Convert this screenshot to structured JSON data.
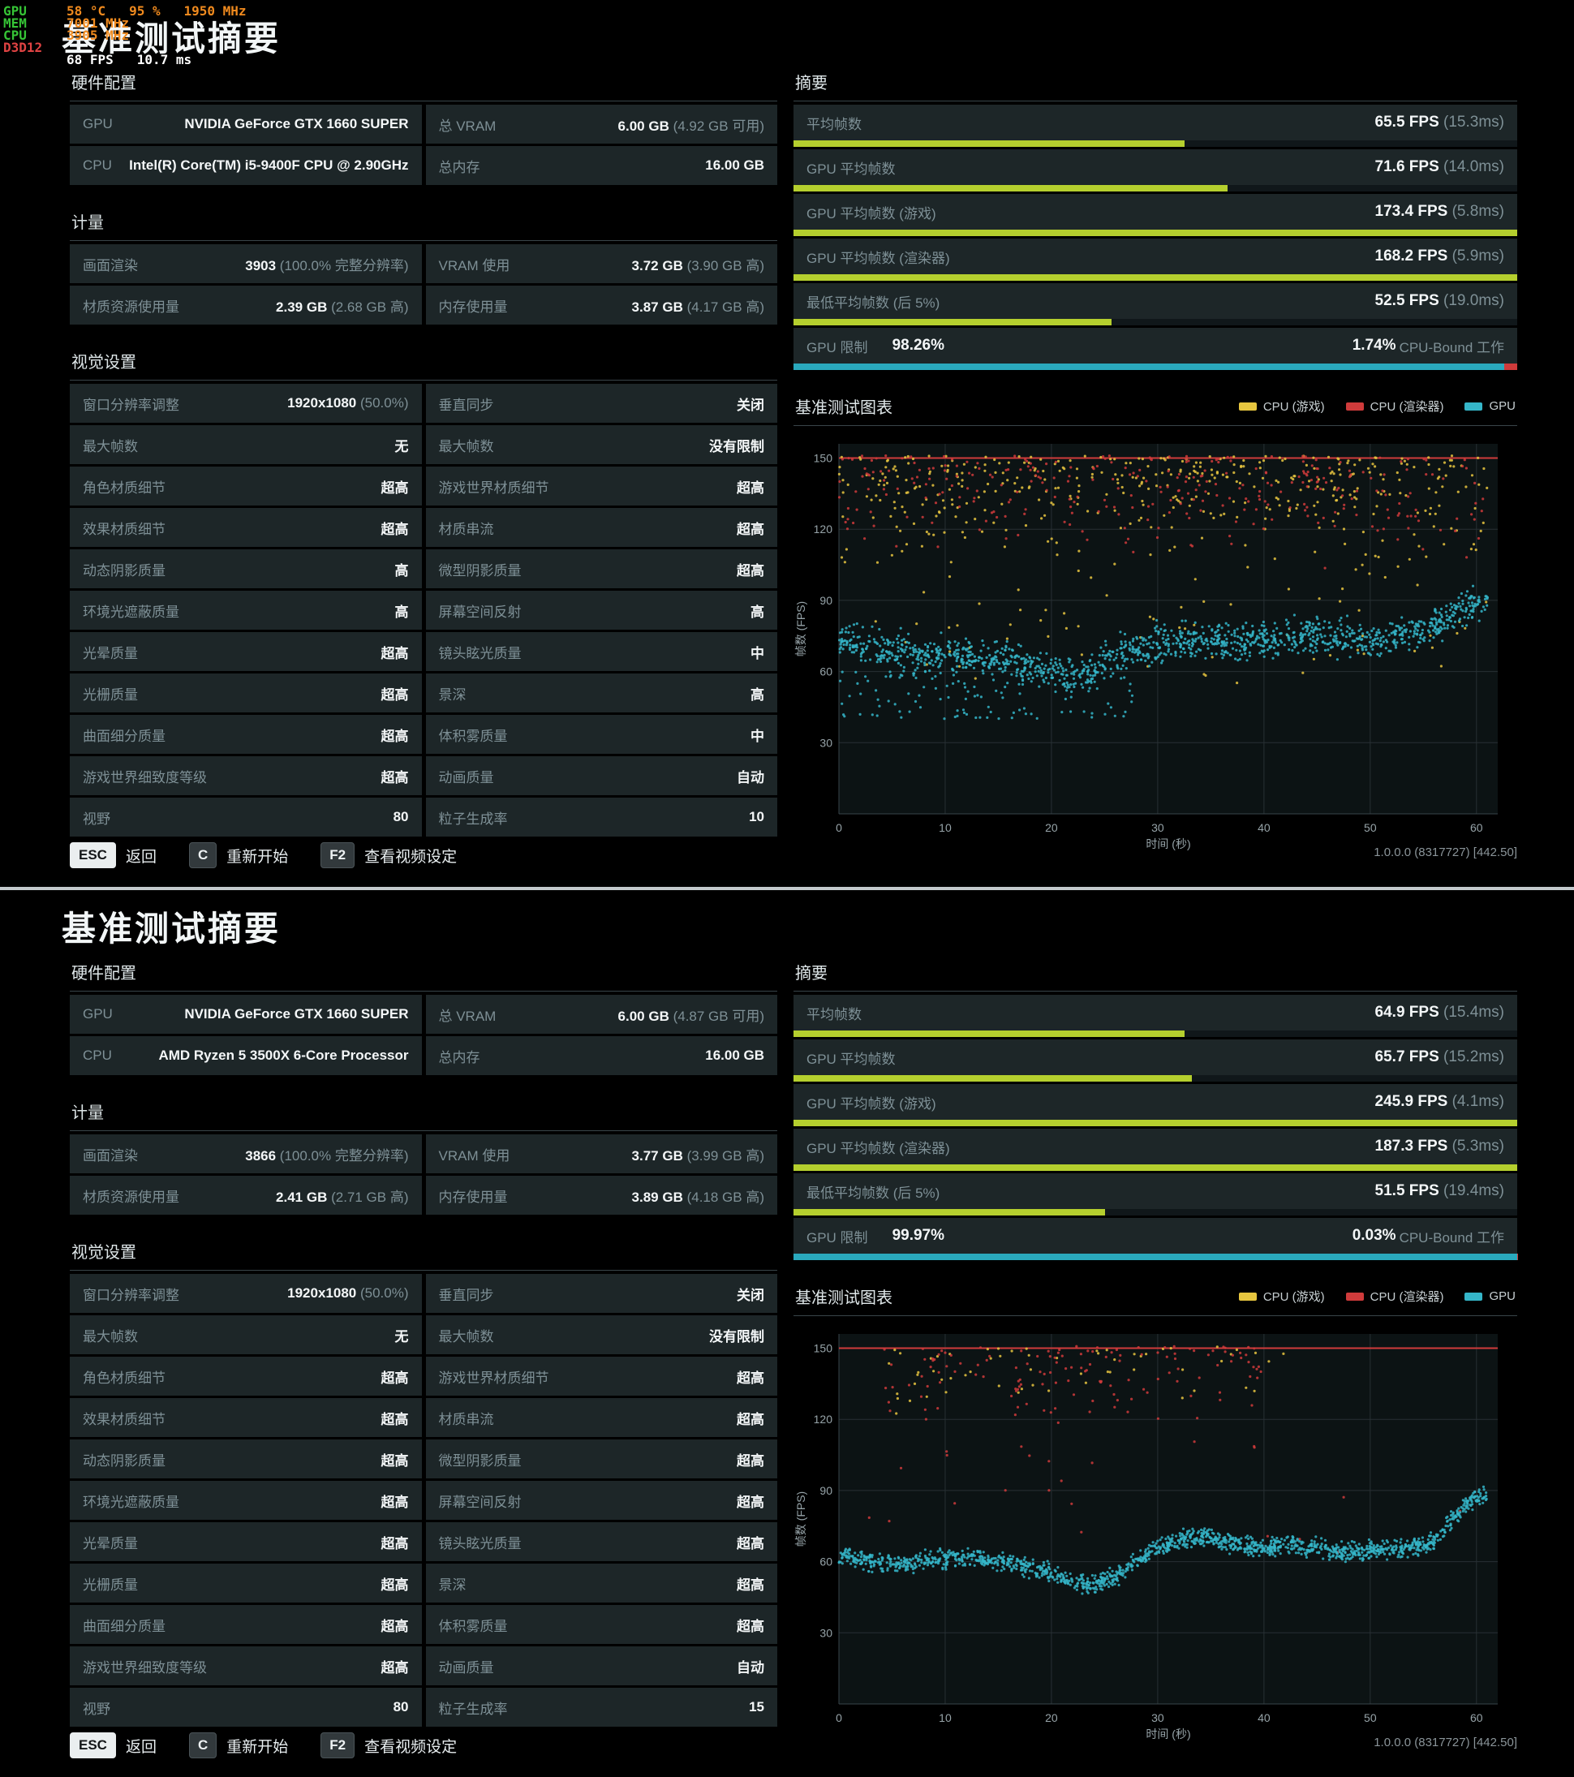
{
  "colors": {
    "green": "#b5cf2e",
    "teal": "#2aa9bd",
    "red": "#cf3b3b",
    "yellow": "#e7c63f",
    "gpu_scatter": "#35b6c9"
  },
  "overlay": {
    "lines": [
      {
        "label": "GPU",
        "label_color": "#36c436",
        "value": "58 °C   95 %   1950 MHz",
        "value_color": "#f08a1e"
      },
      {
        "label": "MEM",
        "label_color": "#36c436",
        "value": "7001 MHz",
        "value_color": "#f08a1e"
      },
      {
        "label": "CPU",
        "label_color": "#36c436",
        "value": "3905 MHz",
        "value_color": "#f08a1e"
      },
      {
        "label": "D3D12",
        "label_color": "#e04343",
        "value": "",
        "value_color": "#f08a1e"
      },
      {
        "label": "",
        "label_color": "#36c436",
        "value": "68 FPS   10.7 ms",
        "value_color": "#ffffff"
      }
    ]
  },
  "panels": [
    {
      "title": "基准测试摘要",
      "hardware": {
        "header": "硬件配置",
        "rows": [
          [
            {
              "label": "GPU",
              "value": "NVIDIA GeForce GTX 1660 SUPER"
            },
            {
              "label": "总 VRAM",
              "value": "6.00 GB",
              "note": "(4.92 GB 可用)"
            }
          ],
          [
            {
              "label": "CPU",
              "value": "Intel(R) Core(TM) i5-9400F CPU @ 2.90GHz"
            },
            {
              "label": "总内存",
              "value": "16.00 GB"
            }
          ]
        ]
      },
      "metrics": {
        "header": "计量",
        "rows": [
          [
            {
              "label": "画面渲染",
              "value": "3903",
              "note": "(100.0% 完整分辨率)"
            },
            {
              "label": "VRAM 使用",
              "value": "3.72 GB",
              "note": "(3.90 GB 高)"
            }
          ],
          [
            {
              "label": "材质资源使用量",
              "value": "2.39 GB",
              "note": "(2.68 GB 高)"
            },
            {
              "label": "内存使用量",
              "value": "3.87 GB",
              "note": "(4.17 GB 高)"
            }
          ]
        ]
      },
      "visual_settings": {
        "header": "视觉设置",
        "rows": [
          [
            {
              "label": "窗口分辨率调整",
              "value": "1920x1080",
              "note": "(50.0%)"
            },
            {
              "label": "垂直同步",
              "value": "关闭"
            }
          ],
          [
            {
              "label": "最大帧数",
              "value": "无"
            },
            {
              "label": "最大帧数",
              "value": "没有限制"
            }
          ],
          [
            {
              "label": "角色材质细节",
              "value": "超高"
            },
            {
              "label": "游戏世界材质细节",
              "value": "超高"
            }
          ],
          [
            {
              "label": "效果材质细节",
              "value": "超高"
            },
            {
              "label": "材质串流",
              "value": "超高"
            }
          ],
          [
            {
              "label": "动态阴影质量",
              "value": "高"
            },
            {
              "label": "微型阴影质量",
              "value": "超高"
            }
          ],
          [
            {
              "label": "环境光遮蔽质量",
              "value": "高"
            },
            {
              "label": "屏幕空间反射",
              "value": "高"
            }
          ],
          [
            {
              "label": "光晕质量",
              "value": "超高"
            },
            {
              "label": "镜头眩光质量",
              "value": "中"
            }
          ],
          [
            {
              "label": "光栅质量",
              "value": "超高"
            },
            {
              "label": "景深",
              "value": "高"
            }
          ],
          [
            {
              "label": "曲面细分质量",
              "value": "超高"
            },
            {
              "label": "体积雾质量",
              "value": "中"
            }
          ],
          [
            {
              "label": "游戏世界细致度等级",
              "value": "超高"
            },
            {
              "label": "动画质量",
              "value": "自动"
            }
          ],
          [
            {
              "label": "视野",
              "value": "80"
            },
            {
              "label": "粒子生成率",
              "value": "10"
            }
          ]
        ]
      },
      "summary": {
        "header": "摘要",
        "metrics": [
          {
            "label": "平均帧数",
            "value": "65.5 FPS",
            "note": "(15.3ms)",
            "bar_pct": 54
          },
          {
            "label": "GPU 平均帧数",
            "value": "71.6 FPS",
            "note": "(14.0ms)",
            "bar_pct": 60
          },
          {
            "label": "GPU 平均帧数 (游戏)",
            "value": "173.4 FPS",
            "note": "(5.8ms)",
            "bar_pct": 100
          },
          {
            "label": "GPU 平均帧数 (渲染器)",
            "value": "168.2 FPS",
            "note": "(5.9ms)",
            "bar_pct": 100
          },
          {
            "label": "最低平均帧数 (后 5%)",
            "value": "52.5 FPS",
            "note": "(19.0ms)",
            "bar_pct": 44
          }
        ],
        "gpu_limit": {
          "label": "GPU 限制",
          "value": "98.26%",
          "right_value": "1.74%",
          "right_label": "CPU-Bound 工作",
          "teal_pct": 98.26
        }
      },
      "chart": {
        "type": "scatter",
        "header": "基准测试图表",
        "legend": [
          {
            "label": "CPU (游戏)",
            "color": "#e7c63f"
          },
          {
            "label": "CPU (渲染器)",
            "color": "#cf3b3b"
          },
          {
            "label": "GPU",
            "color": "#35b6c9"
          }
        ],
        "xlabel": "时间 (秒)",
        "ylabel": "帧数 (FPS)",
        "xticks": [
          0,
          10,
          20,
          30,
          40,
          50,
          60
        ],
        "yticks": [
          30,
          60,
          90,
          120,
          150
        ],
        "xlim": [
          0,
          62
        ],
        "ylim": [
          0,
          156
        ],
        "cap": 150,
        "seed": 7,
        "series": [
          {
            "name": "CPU (游戏)",
            "color": "#e7c63f",
            "kind": "cloud",
            "count": 430,
            "t": [
              0,
              61
            ],
            "y": [
              96,
              151
            ],
            "bias": 2.2
          },
          {
            "name": "CPU (游戏) 低值",
            "color": "#e7c63f",
            "kind": "cloud",
            "count": 60,
            "t": [
              0,
              61
            ],
            "y": [
              55,
              100
            ],
            "bias": 1
          },
          {
            "name": "CPU (渲染器)",
            "color": "#cf3b3b",
            "kind": "cloud",
            "count": 320,
            "t": [
              0,
              61
            ],
            "y": [
              100,
              151
            ],
            "bias": 2.6
          },
          {
            "name": "GPU 离散",
            "color": "#35b6c9",
            "kind": "cloud",
            "count": 110,
            "t": [
              0,
              28
            ],
            "y": [
              40,
              60
            ],
            "bias": 1
          },
          {
            "name": "GPU",
            "color": "#35b6c9",
            "kind": "band",
            "count": 1300,
            "jitter": 7,
            "path": [
              [
                0,
                74
              ],
              [
                4,
                70
              ],
              [
                8,
                67
              ],
              [
                12,
                66
              ],
              [
                16,
                64
              ],
              [
                20,
                60
              ],
              [
                22,
                58
              ],
              [
                24,
                62
              ],
              [
                27,
                68
              ],
              [
                30,
                72
              ],
              [
                34,
                74
              ],
              [
                38,
                72
              ],
              [
                42,
                74
              ],
              [
                46,
                75
              ],
              [
                50,
                73
              ],
              [
                54,
                76
              ],
              [
                57,
                82
              ],
              [
                59,
                88
              ],
              [
                61,
                90
              ]
            ]
          }
        ]
      },
      "footer": {
        "keys": [
          {
            "key": "ESC",
            "label": "返回"
          },
          {
            "key": "C",
            "label": "重新开始"
          },
          {
            "key": "F2",
            "label": "查看视频设定"
          }
        ],
        "version": "1.0.0.0 (8317727) [442.50]"
      }
    },
    {
      "title": "基准测试摘要",
      "hardware": {
        "header": "硬件配置",
        "rows": [
          [
            {
              "label": "GPU",
              "value": "NVIDIA GeForce GTX 1660 SUPER"
            },
            {
              "label": "总 VRAM",
              "value": "6.00 GB",
              "note": "(4.87 GB 可用)"
            }
          ],
          [
            {
              "label": "CPU",
              "value": "AMD Ryzen 5 3500X 6-Core Processor"
            },
            {
              "label": "总内存",
              "value": "16.00 GB"
            }
          ]
        ]
      },
      "metrics": {
        "header": "计量",
        "rows": [
          [
            {
              "label": "画面渲染",
              "value": "3866",
              "note": "(100.0% 完整分辨率)"
            },
            {
              "label": "VRAM 使用",
              "value": "3.77 GB",
              "note": "(3.99 GB 高)"
            }
          ],
          [
            {
              "label": "材质资源使用量",
              "value": "2.41 GB",
              "note": "(2.71 GB 高)"
            },
            {
              "label": "内存使用量",
              "value": "3.89 GB",
              "note": "(4.18 GB 高)"
            }
          ]
        ]
      },
      "visual_settings": {
        "header": "视觉设置",
        "rows": [
          [
            {
              "label": "窗口分辨率调整",
              "value": "1920x1080",
              "note": "(50.0%)"
            },
            {
              "label": "垂直同步",
              "value": "关闭"
            }
          ],
          [
            {
              "label": "最大帧数",
              "value": "无"
            },
            {
              "label": "最大帧数",
              "value": "没有限制"
            }
          ],
          [
            {
              "label": "角色材质细节",
              "value": "超高"
            },
            {
              "label": "游戏世界材质细节",
              "value": "超高"
            }
          ],
          [
            {
              "label": "效果材质细节",
              "value": "超高"
            },
            {
              "label": "材质串流",
              "value": "超高"
            }
          ],
          [
            {
              "label": "动态阴影质量",
              "value": "超高"
            },
            {
              "label": "微型阴影质量",
              "value": "超高"
            }
          ],
          [
            {
              "label": "环境光遮蔽质量",
              "value": "超高"
            },
            {
              "label": "屏幕空间反射",
              "value": "超高"
            }
          ],
          [
            {
              "label": "光晕质量",
              "value": "超高"
            },
            {
              "label": "镜头眩光质量",
              "value": "超高"
            }
          ],
          [
            {
              "label": "光栅质量",
              "value": "超高"
            },
            {
              "label": "景深",
              "value": "超高"
            }
          ],
          [
            {
              "label": "曲面细分质量",
              "value": "超高"
            },
            {
              "label": "体积雾质量",
              "value": "超高"
            }
          ],
          [
            {
              "label": "游戏世界细致度等级",
              "value": "超高"
            },
            {
              "label": "动画质量",
              "value": "自动"
            }
          ],
          [
            {
              "label": "视野",
              "value": "80"
            },
            {
              "label": "粒子生成率",
              "value": "15"
            }
          ]
        ]
      },
      "summary": {
        "header": "摘要",
        "metrics": [
          {
            "label": "平均帧数",
            "value": "64.9 FPS",
            "note": "(15.4ms)",
            "bar_pct": 54
          },
          {
            "label": "GPU 平均帧数",
            "value": "65.7 FPS",
            "note": "(15.2ms)",
            "bar_pct": 55
          },
          {
            "label": "GPU 平均帧数 (游戏)",
            "value": "245.9 FPS",
            "note": "(4.1ms)",
            "bar_pct": 100
          },
          {
            "label": "GPU 平均帧数 (渲染器)",
            "value": "187.3 FPS",
            "note": "(5.3ms)",
            "bar_pct": 100
          },
          {
            "label": "最低平均帧数 (后 5%)",
            "value": "51.5 FPS",
            "note": "(19.4ms)",
            "bar_pct": 43
          }
        ],
        "gpu_limit": {
          "label": "GPU 限制",
          "value": "99.97%",
          "right_value": "0.03%",
          "right_label": "CPU-Bound 工作",
          "teal_pct": 99.97
        }
      },
      "chart": {
        "type": "scatter",
        "header": "基准测试图表",
        "legend": [
          {
            "label": "CPU (游戏)",
            "color": "#e7c63f"
          },
          {
            "label": "CPU (渲染器)",
            "color": "#cf3b3b"
          },
          {
            "label": "GPU",
            "color": "#35b6c9"
          }
        ],
        "xlabel": "时间 (秒)",
        "ylabel": "帧数 (FPS)",
        "xticks": [
          0,
          10,
          20,
          30,
          40,
          50,
          60
        ],
        "yticks": [
          30,
          60,
          90,
          120,
          150
        ],
        "xlim": [
          0,
          62
        ],
        "ylim": [
          0,
          156
        ],
        "cap": 150,
        "seed": 13,
        "series": [
          {
            "name": "CPU (游戏)",
            "color": "#e7c63f",
            "kind": "cloud",
            "count": 60,
            "t": [
              4,
              42
            ],
            "y": [
              118,
              151
            ],
            "bias": 2.5
          },
          {
            "name": "CPU (渲染器)",
            "color": "#cf3b3b",
            "kind": "cloud",
            "count": 140,
            "t": [
              4,
              40
            ],
            "y": [
              108,
              151
            ],
            "bias": 2.8
          },
          {
            "name": "CPU (渲染器) 低值",
            "color": "#cf3b3b",
            "kind": "cloud",
            "count": 22,
            "t": [
              0,
              61
            ],
            "y": [
              60,
              110
            ],
            "bias": 1
          },
          {
            "name": "GPU",
            "color": "#35b6c9",
            "kind": "band",
            "count": 1500,
            "jitter": 3.5,
            "path": [
              [
                0,
                63
              ],
              [
                3,
                60
              ],
              [
                6,
                59
              ],
              [
                9,
                61
              ],
              [
                12,
                62
              ],
              [
                15,
                60
              ],
              [
                18,
                58
              ],
              [
                20,
                55
              ],
              [
                22,
                52
              ],
              [
                24,
                50
              ],
              [
                26,
                54
              ],
              [
                28,
                60
              ],
              [
                30,
                66
              ],
              [
                33,
                70
              ],
              [
                36,
                69
              ],
              [
                39,
                66
              ],
              [
                42,
                67
              ],
              [
                45,
                66
              ],
              [
                48,
                64
              ],
              [
                51,
                65
              ],
              [
                54,
                66
              ],
              [
                56,
                68
              ],
              [
                58,
                80
              ],
              [
                60,
                87
              ],
              [
                61,
                88
              ]
            ]
          }
        ]
      },
      "footer": {
        "keys": [
          {
            "key": "ESC",
            "label": "返回"
          },
          {
            "key": "C",
            "label": "重新开始"
          },
          {
            "key": "F2",
            "label": "查看视频设定"
          }
        ],
        "version": "1.0.0.0 (8317727) [442.50]"
      }
    }
  ]
}
